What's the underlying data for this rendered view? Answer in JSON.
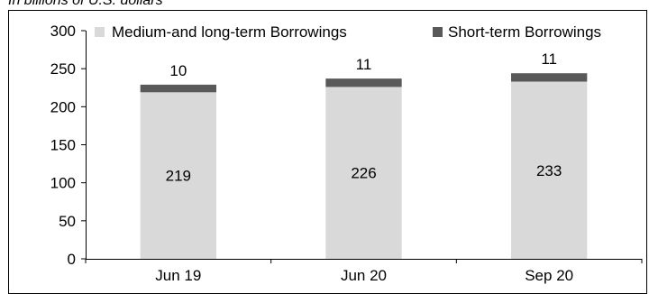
{
  "caption": "In billions of U.S. dollars",
  "chart_data": {
    "type": "bar",
    "stacked": true,
    "categories": [
      "Jun 19",
      "Jun 20",
      "Sep 20"
    ],
    "series": [
      {
        "name": "Medium-and long-term Borrowings",
        "values": [
          219,
          226,
          233
        ],
        "color": "#d9d9d9",
        "labels": [
          "219",
          "226",
          "233"
        ]
      },
      {
        "name": "Short-term Borrowings",
        "values": [
          10,
          11,
          11
        ],
        "color": "#595959",
        "labels": [
          "10",
          "11",
          "11"
        ]
      }
    ],
    "y_ticks": [
      "0",
      "50",
      "100",
      "150",
      "200",
      "250",
      "300"
    ],
    "ylim": [
      0,
      300
    ],
    "legend_position": "top",
    "grid": false
  }
}
